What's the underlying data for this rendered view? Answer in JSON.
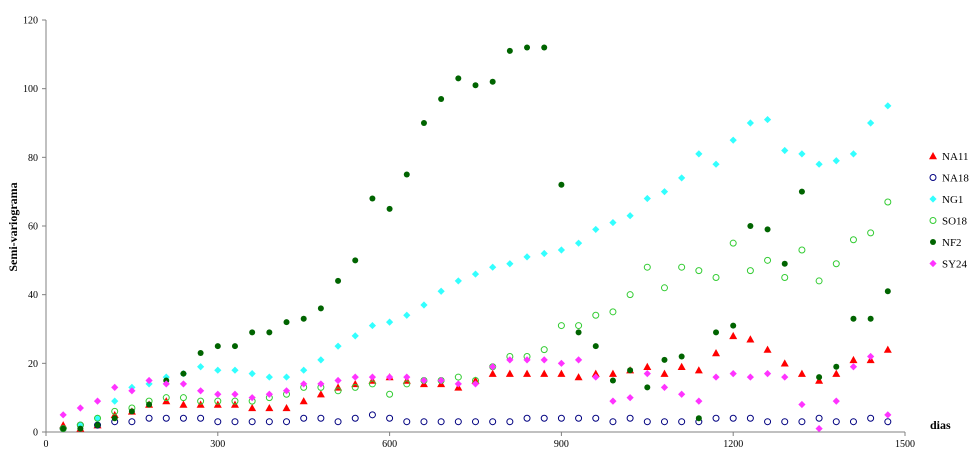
{
  "chart_data": {
    "type": "scatter",
    "title": "",
    "xlabel": "dias",
    "ylabel": "Semi-variograma",
    "xlim": [
      0,
      1500
    ],
    "ylim": [
      0,
      120
    ],
    "x_ticks": [
      "0",
      "300",
      "600",
      "900",
      "1200",
      "1500"
    ],
    "y_ticks": [
      "0",
      "20",
      "40",
      "60",
      "80",
      "100",
      "120"
    ],
    "grid": false,
    "legend_position": "right",
    "x": [
      30,
      60,
      90,
      120,
      150,
      180,
      210,
      240,
      270,
      300,
      330,
      360,
      390,
      420,
      450,
      480,
      510,
      540,
      570,
      600,
      630,
      660,
      690,
      720,
      750,
      780,
      810,
      840,
      870,
      900,
      930,
      960,
      990,
      1020,
      1050,
      1080,
      1110,
      1140,
      1170,
      1200,
      1230,
      1260,
      1290,
      1320,
      1350,
      1380,
      1410,
      1440,
      1470
    ],
    "series": [
      {
        "name": "NA11",
        "marker": "triangle",
        "color": "#ff0000",
        "filled": true,
        "values": [
          2,
          1,
          2,
          5,
          6,
          8,
          9,
          8,
          8,
          8,
          8,
          7,
          7,
          7,
          9,
          11,
          13,
          14,
          15,
          16,
          15,
          14,
          14,
          13,
          15,
          17,
          17,
          17,
          17,
          17,
          16,
          17,
          17,
          18,
          19,
          17,
          19,
          18,
          23,
          28,
          27,
          24,
          20,
          17,
          15,
          17,
          21,
          21,
          24
        ]
      },
      {
        "name": "NA18",
        "marker": "circle",
        "color": "#000080",
        "filled": false,
        "values": [
          1,
          2,
          2,
          3,
          3,
          4,
          4,
          4,
          4,
          3,
          3,
          3,
          3,
          3,
          4,
          4,
          3,
          4,
          5,
          4,
          3,
          3,
          3,
          3,
          3,
          3,
          3,
          4,
          4,
          4,
          4,
          4,
          3,
          4,
          3,
          3,
          3,
          3,
          4,
          4,
          4,
          3,
          3,
          3,
          4,
          3,
          3,
          4,
          3
        ]
      },
      {
        "name": "NG1",
        "marker": "diamond",
        "color": "#33ffff",
        "filled": true,
        "values": [
          1,
          2,
          4,
          9,
          13,
          14,
          16,
          17,
          19,
          18,
          18,
          17,
          16,
          16,
          18,
          21,
          25,
          28,
          31,
          32,
          34,
          37,
          41,
          44,
          46,
          48,
          49,
          51,
          52,
          53,
          55,
          59,
          61,
          63,
          68,
          70,
          74,
          81,
          78,
          85,
          90,
          91,
          82,
          81,
          78,
          79,
          81,
          90,
          95
        ]
      },
      {
        "name": "SO18",
        "marker": "circle",
        "color": "#33cc33",
        "filled": false,
        "values": [
          1,
          2,
          4,
          6,
          7,
          9,
          10,
          10,
          9,
          9,
          9,
          9,
          10,
          11,
          13,
          13,
          12,
          13,
          14,
          11,
          14,
          15,
          15,
          16,
          15,
          19,
          22,
          22,
          24,
          31,
          31,
          34,
          35,
          40,
          48,
          42,
          48,
          47,
          45,
          55,
          47,
          50,
          45,
          53,
          44,
          49,
          56,
          58,
          67
        ]
      },
      {
        "name": "NF2",
        "marker": "circle",
        "color": "#006400",
        "filled": true,
        "values": [
          1,
          1,
          2,
          4,
          6,
          8,
          15,
          17,
          23,
          25,
          25,
          29,
          29,
          32,
          33,
          36,
          44,
          50,
          68,
          65,
          75,
          90,
          97,
          103,
          101,
          102,
          111,
          112,
          112,
          72,
          29,
          25,
          15,
          18,
          13,
          21,
          22,
          4,
          29,
          31,
          60,
          59,
          49,
          70,
          16,
          19,
          33,
          33,
          41
        ]
      },
      {
        "name": "SY24",
        "marker": "diamond",
        "color": "#ff33ff",
        "filled": true,
        "values": [
          5,
          7,
          9,
          13,
          12,
          15,
          14,
          14,
          12,
          11,
          11,
          10,
          11,
          12,
          14,
          14,
          15,
          16,
          16,
          16,
          16,
          15,
          15,
          14,
          14,
          19,
          21,
          21,
          21,
          20,
          21,
          16,
          9,
          10,
          17,
          13,
          11,
          9,
          16,
          17,
          16,
          17,
          16,
          8,
          1,
          9,
          19,
          22,
          5
        ]
      }
    ]
  }
}
